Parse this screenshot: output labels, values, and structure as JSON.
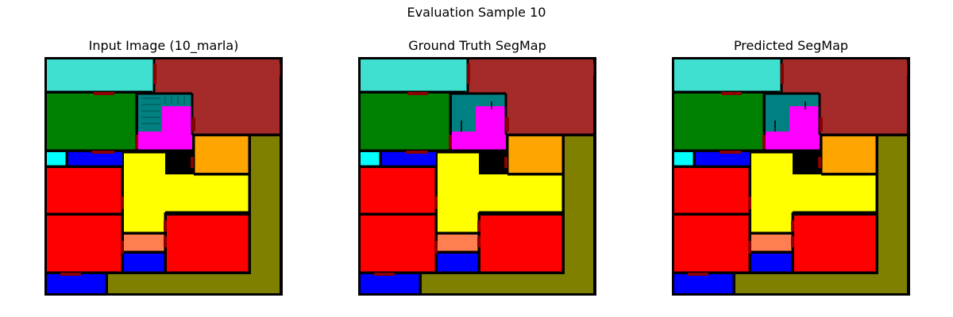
{
  "figure": {
    "suptitle": "Evaluation Sample 10"
  },
  "panels": [
    {
      "id": "input",
      "title": "Input Image (10_marla)"
    },
    {
      "id": "ground_truth",
      "title": "Ground Truth SegMap"
    },
    {
      "id": "predicted",
      "title": "Predicted SegMap"
    }
  ],
  "colors": {
    "turquoise": "#40E0D0",
    "brown": "#A52A2A",
    "green": "#008000",
    "teal": "#008080",
    "magenta": "#FF00FF",
    "orange": "#FFA500",
    "olive": "#808000",
    "cyan": "#00FFFF",
    "blue": "#0000FF",
    "yellow": "#FFFF00",
    "red": "#FF0000",
    "coral": "#FF7F50",
    "door": "#8B0000",
    "wall": "#000000"
  }
}
